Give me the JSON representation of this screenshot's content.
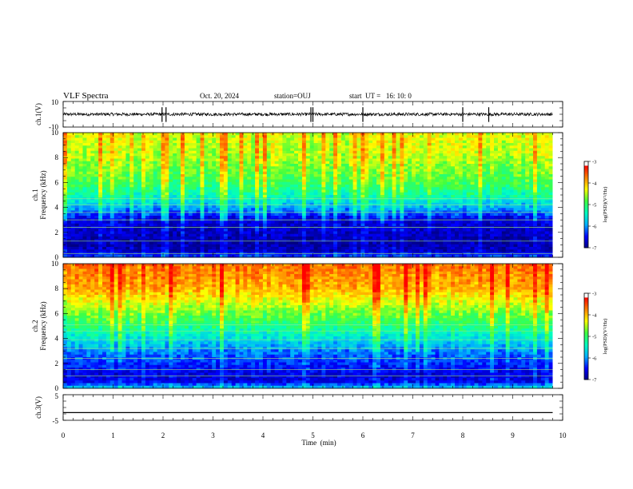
{
  "header": {
    "title": "VLF Spectra",
    "date": "Oct. 20, 2024",
    "station": "station=OUJ",
    "start": "start  UT =   16: 10: 0"
  },
  "colors": {
    "scale": [
      "#000080",
      "#0000ff",
      "#00b0ff",
      "#00ffc0",
      "#40ff40",
      "#ffff00",
      "#ff8000",
      "#ff0000",
      "#ffffff"
    ]
  },
  "chart_data": [
    {
      "type": "line",
      "panel": "ch1-waveform",
      "ylabel": "ch.1(V)",
      "yticks": [
        "10",
        "-10"
      ],
      "ylim": [
        -10,
        10
      ],
      "xlim": [
        0,
        10
      ],
      "baseline": 0,
      "noise_amplitude": 1.2,
      "spikes_x": [
        1.98,
        2.06,
        4.96,
        5.0,
        6.0,
        8.0,
        8.52
      ]
    },
    {
      "type": "heatmap",
      "panel": "ch1-spectrogram",
      "ylabel": "ch.1\nFrequency (kHz)",
      "ylabel_lines": [
        "ch.1",
        "Frequency (kHz)"
      ],
      "yticks": [
        "0",
        "2",
        "4",
        "6",
        "8",
        "10"
      ],
      "ylim": [
        0,
        10
      ],
      "xlim": [
        0,
        9.8
      ],
      "colorbar": {
        "label": "log(PSD)(V²/Hz)",
        "ticks": [
          "-3",
          "-4",
          "-5",
          "-6",
          "-7"
        ],
        "range": [
          -7,
          -3
        ]
      },
      "profile_kHz": [
        0.0,
        0.5,
        1.0,
        2.0,
        3.0,
        4.0,
        5.0,
        6.0,
        8.0,
        10.0
      ],
      "profile_logpsd": [
        -6.2,
        -6.7,
        -6.8,
        -6.7,
        -6.6,
        -5.8,
        -5.2,
        -4.8,
        -4.4,
        -4.2
      ],
      "bright_bands_kHz": [
        0.3,
        1.3,
        2.4,
        3.0,
        3.6,
        4.2,
        4.7
      ]
    },
    {
      "type": "heatmap",
      "panel": "ch2-spectrogram",
      "ylabel": "ch.2\nFrequency (kHz)",
      "ylabel_lines": [
        "ch.2",
        "Frequency (kHz)"
      ],
      "yticks": [
        "0",
        "2",
        "4",
        "6",
        "8",
        "10"
      ],
      "ylim": [
        0,
        10
      ],
      "xlim": [
        0,
        9.8
      ],
      "colorbar": {
        "label": "log(PSD)(V²/Hz)",
        "ticks": [
          "-3",
          "-4",
          "-5",
          "-6",
          "-7"
        ],
        "range": [
          -7,
          -3
        ]
      },
      "profile_kHz": [
        0.0,
        0.5,
        1.0,
        2.0,
        3.0,
        4.0,
        5.0,
        6.0,
        8.0,
        10.0
      ],
      "profile_logpsd": [
        -5.6,
        -6.5,
        -6.6,
        -6.3,
        -6.0,
        -5.5,
        -5.0,
        -4.6,
        -3.8,
        -3.5
      ],
      "bright_bands_kHz": [
        1.0,
        1.5,
        2.4,
        3.2,
        3.9,
        4.6,
        5.1
      ]
    },
    {
      "type": "line",
      "panel": "ch3-waveform",
      "ylabel": "ch.3(V)",
      "yticks": [
        "5",
        "-5"
      ],
      "ylim": [
        -5,
        5
      ],
      "xlim": [
        0,
        10
      ],
      "baseline": -2,
      "noise_amplitude": 0
    }
  ],
  "xaxis": {
    "label": "Time  (min)",
    "ticks": [
      "0",
      "1",
      "2",
      "3",
      "4",
      "5",
      "6",
      "7",
      "8",
      "9",
      "10"
    ]
  }
}
